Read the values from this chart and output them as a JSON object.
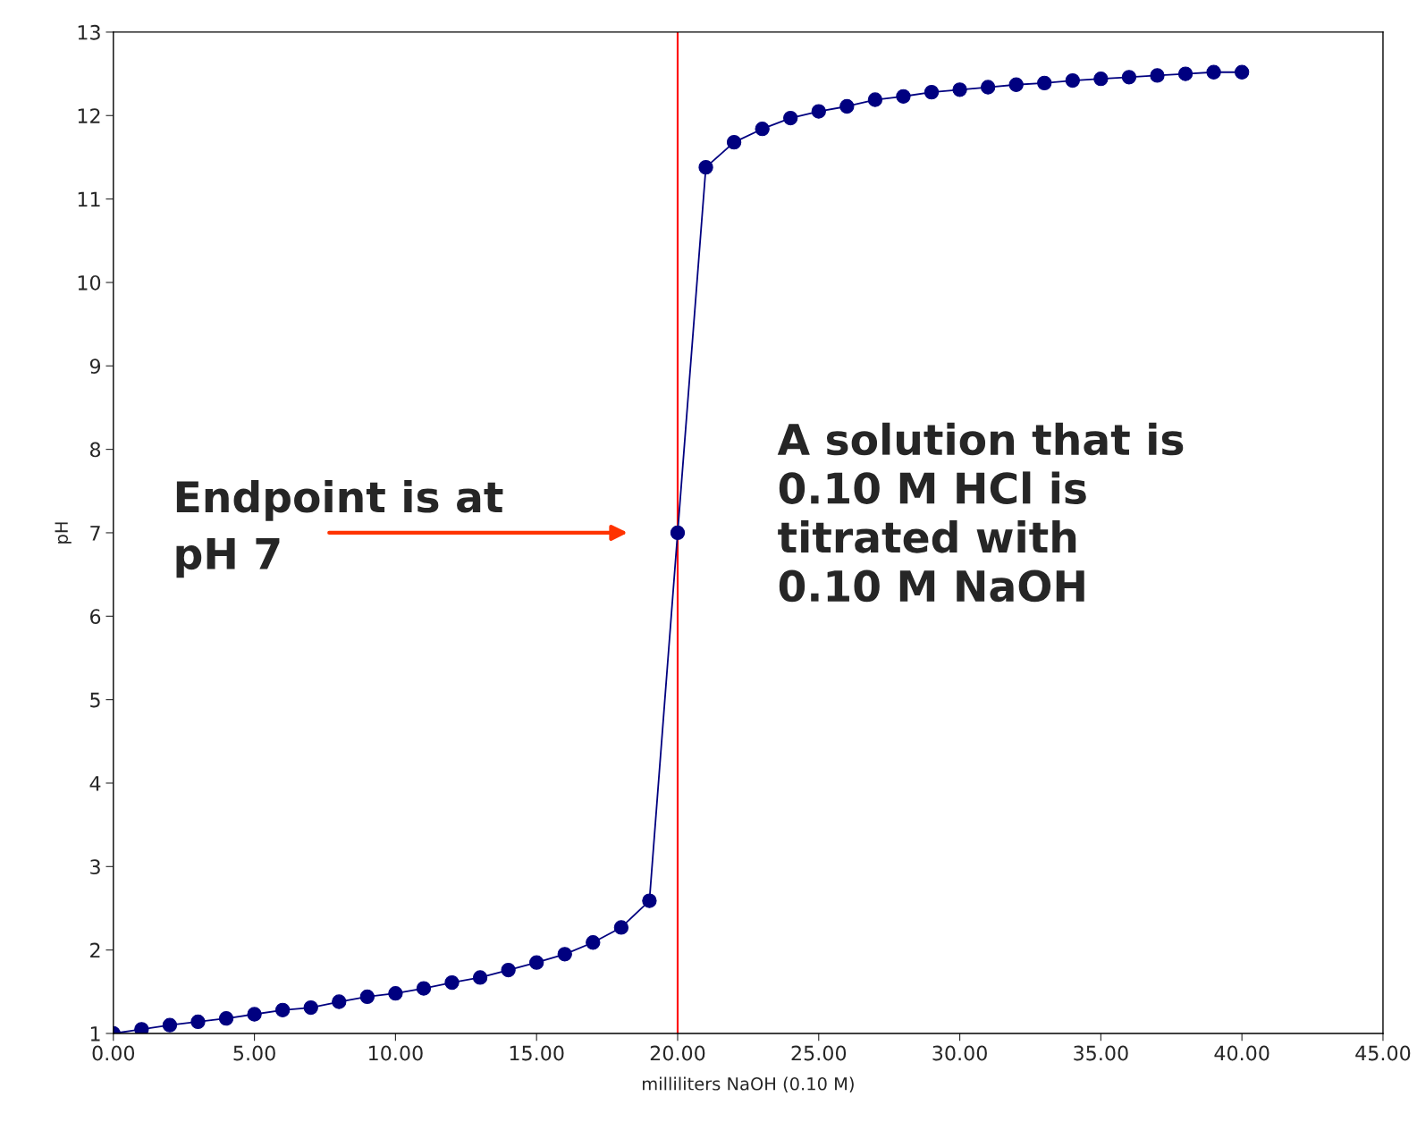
{
  "chart_data": {
    "type": "line",
    "xlabel": "milliliters NaOH (0.10 M)",
    "ylabel": "pH",
    "x": [
      0,
      1,
      2,
      3,
      4,
      5,
      6,
      7,
      8,
      9,
      10,
      11,
      12,
      13,
      14,
      15,
      16,
      17,
      18,
      19,
      20,
      21,
      22,
      23,
      24,
      25,
      26,
      27,
      28,
      29,
      30,
      31,
      32,
      33,
      34,
      35,
      36,
      37,
      38,
      39,
      40
    ],
    "series": [
      {
        "color": "#000080",
        "values": [
          1.0,
          1.05,
          1.1,
          1.14,
          1.18,
          1.23,
          1.28,
          1.31,
          1.38,
          1.44,
          1.48,
          1.54,
          1.61,
          1.67,
          1.76,
          1.85,
          1.95,
          2.09,
          2.27,
          2.59,
          7.0,
          11.38,
          11.68,
          11.84,
          11.97,
          12.05,
          12.11,
          12.19,
          12.23,
          12.28,
          12.31,
          12.34,
          12.37,
          12.39,
          12.42,
          12.44,
          12.46,
          12.48,
          12.5,
          12.52,
          12.52
        ]
      }
    ],
    "marker": "circle",
    "line_style": "solid",
    "xlim": [
      0,
      45
    ],
    "ylim": [
      1,
      13
    ],
    "xticks": [
      {
        "value": 0,
        "label": "0.00"
      },
      {
        "value": 5,
        "label": "5.00"
      },
      {
        "value": 10,
        "label": "10.00"
      },
      {
        "value": 15,
        "label": "15.00"
      },
      {
        "value": 20,
        "label": "20.00"
      },
      {
        "value": 25,
        "label": "25.00"
      },
      {
        "value": 30,
        "label": "30.00"
      },
      {
        "value": 35,
        "label": "35.00"
      },
      {
        "value": 40,
        "label": "40.00"
      },
      {
        "value": 45,
        "label": "45.00"
      }
    ],
    "yticks": [
      1,
      2,
      3,
      4,
      5,
      6,
      7,
      8,
      9,
      10,
      11,
      12,
      13
    ],
    "grid": false,
    "legend": false,
    "ref_lines": [
      {
        "axis": "x",
        "value": 20,
        "color": "#ff0000"
      }
    ],
    "annotations": [
      "Endpoint is at\npH 7",
      "A solution that is\n0.10 M HCl is\ntitrated with\n0.10 M NaOH"
    ]
  }
}
